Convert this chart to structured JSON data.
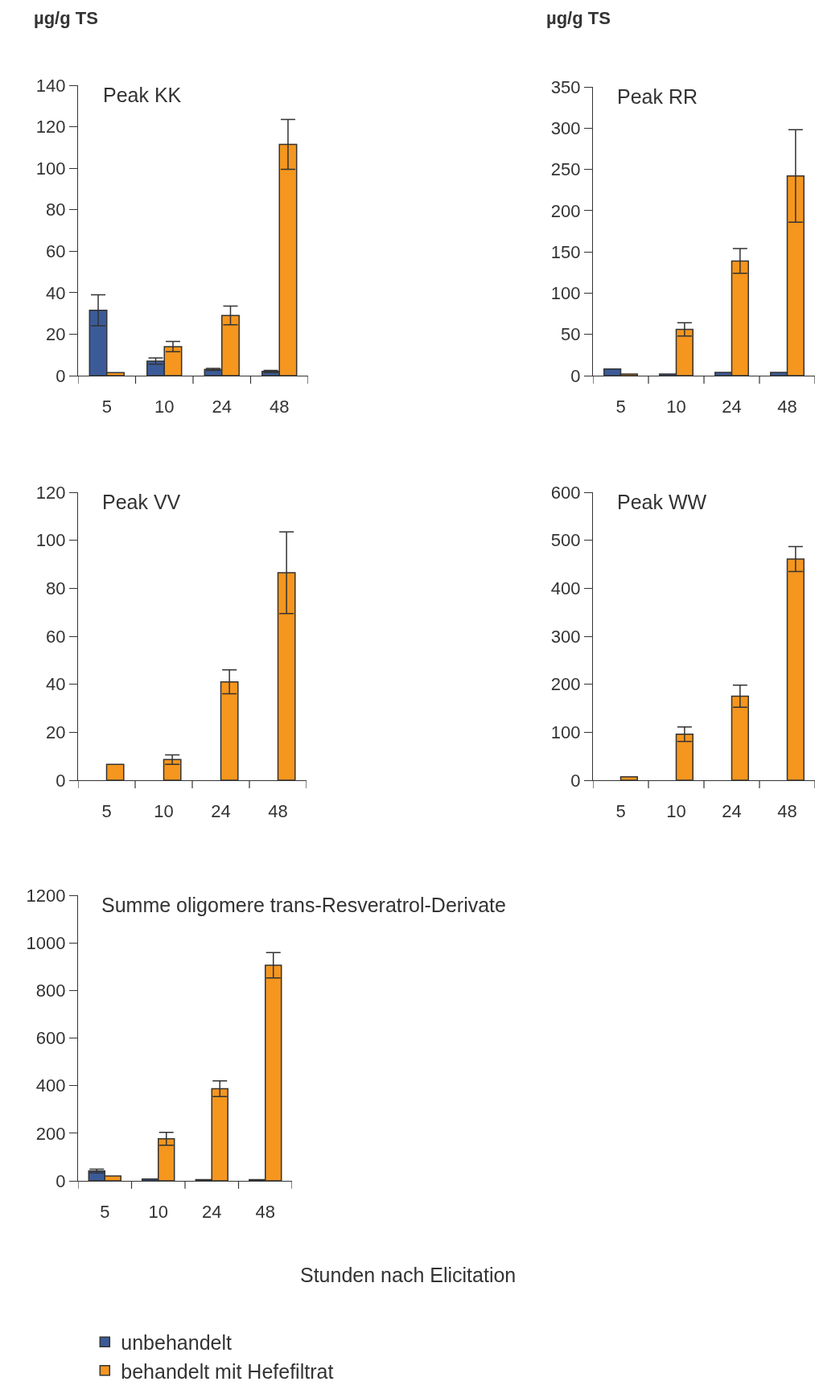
{
  "chart_data": [
    {
      "type": "bar",
      "title": "Peak KK",
      "ylabel": "µg/g TS",
      "categories": [
        "5",
        "10",
        "24",
        "48"
      ],
      "ylim": [
        0,
        140
      ],
      "yticks": [
        0,
        20,
        40,
        60,
        80,
        100,
        120,
        140
      ],
      "series": [
        {
          "color": "#3b5b98",
          "values": [
            31.5,
            7,
            3,
            2
          ],
          "errors": [
            7.5,
            1.5,
            0.5,
            0.5
          ]
        },
        {
          "color": "#f5961e",
          "values": [
            1.5,
            14,
            29,
            111.5
          ],
          "errors": [
            null,
            2.5,
            4.5,
            12
          ]
        }
      ]
    },
    {
      "type": "bar",
      "title": "Peak RR",
      "ylabel": "µg/g TS",
      "categories": [
        "5",
        "10",
        "24",
        "48"
      ],
      "ylim": [
        0,
        350
      ],
      "yticks": [
        0,
        50,
        100,
        150,
        200,
        250,
        300,
        350
      ],
      "series": [
        {
          "color": "#3b5b98",
          "values": [
            8,
            2,
            4,
            4
          ],
          "errors": [
            null,
            null,
            null,
            null
          ]
        },
        {
          "color": "#f5961e",
          "values": [
            2,
            56,
            139,
            242
          ],
          "errors": [
            null,
            8,
            15,
            56
          ]
        }
      ]
    },
    {
      "type": "bar",
      "title": "Peak VV",
      "categories": [
        "5",
        "10",
        "24",
        "48"
      ],
      "ylim": [
        0,
        120
      ],
      "yticks": [
        0,
        20,
        40,
        60,
        80,
        100,
        120
      ],
      "series": [
        {
          "color": "#3b5b98",
          "values": [
            null,
            null,
            null,
            null
          ],
          "errors": [
            null,
            null,
            null,
            null
          ]
        },
        {
          "color": "#f5961e",
          "values": [
            6.6,
            8.6,
            41,
            86.5
          ],
          "errors": [
            null,
            2,
            5,
            17
          ]
        }
      ]
    },
    {
      "type": "bar",
      "title": "Peak WW",
      "categories": [
        "5",
        "10",
        "24",
        "48"
      ],
      "ylim": [
        0,
        600
      ],
      "yticks": [
        0,
        100,
        200,
        300,
        400,
        500,
        600
      ],
      "series": [
        {
          "color": "#3b5b98",
          "values": [
            null,
            null,
            null,
            null
          ],
          "errors": [
            null,
            null,
            null,
            null
          ]
        },
        {
          "color": "#f5961e",
          "values": [
            7,
            96,
            175,
            461
          ],
          "errors": [
            null,
            15,
            23,
            26
          ]
        }
      ]
    },
    {
      "type": "bar",
      "title": "Summe oligomere trans-Resveratrol-Derivate",
      "xlabel": "Stunden nach Elicitation",
      "legend": "bottom",
      "categories": [
        "5",
        "10",
        "24",
        "48"
      ],
      "ylim": [
        0,
        1200
      ],
      "yticks": [
        0,
        200,
        400,
        600,
        800,
        1000,
        1200
      ],
      "series": [
        {
          "name": "unbehandelt",
          "color": "#3b5b98",
          "values": [
            41,
            8,
            5,
            5
          ],
          "errors": [
            8,
            null,
            null,
            null
          ]
        },
        {
          "name": "behandelt mit Hefefiltrat",
          "color": "#f5961e",
          "values": [
            20,
            177,
            387,
            906
          ],
          "errors": [
            null,
            27,
            33,
            53
          ]
        }
      ]
    }
  ]
}
